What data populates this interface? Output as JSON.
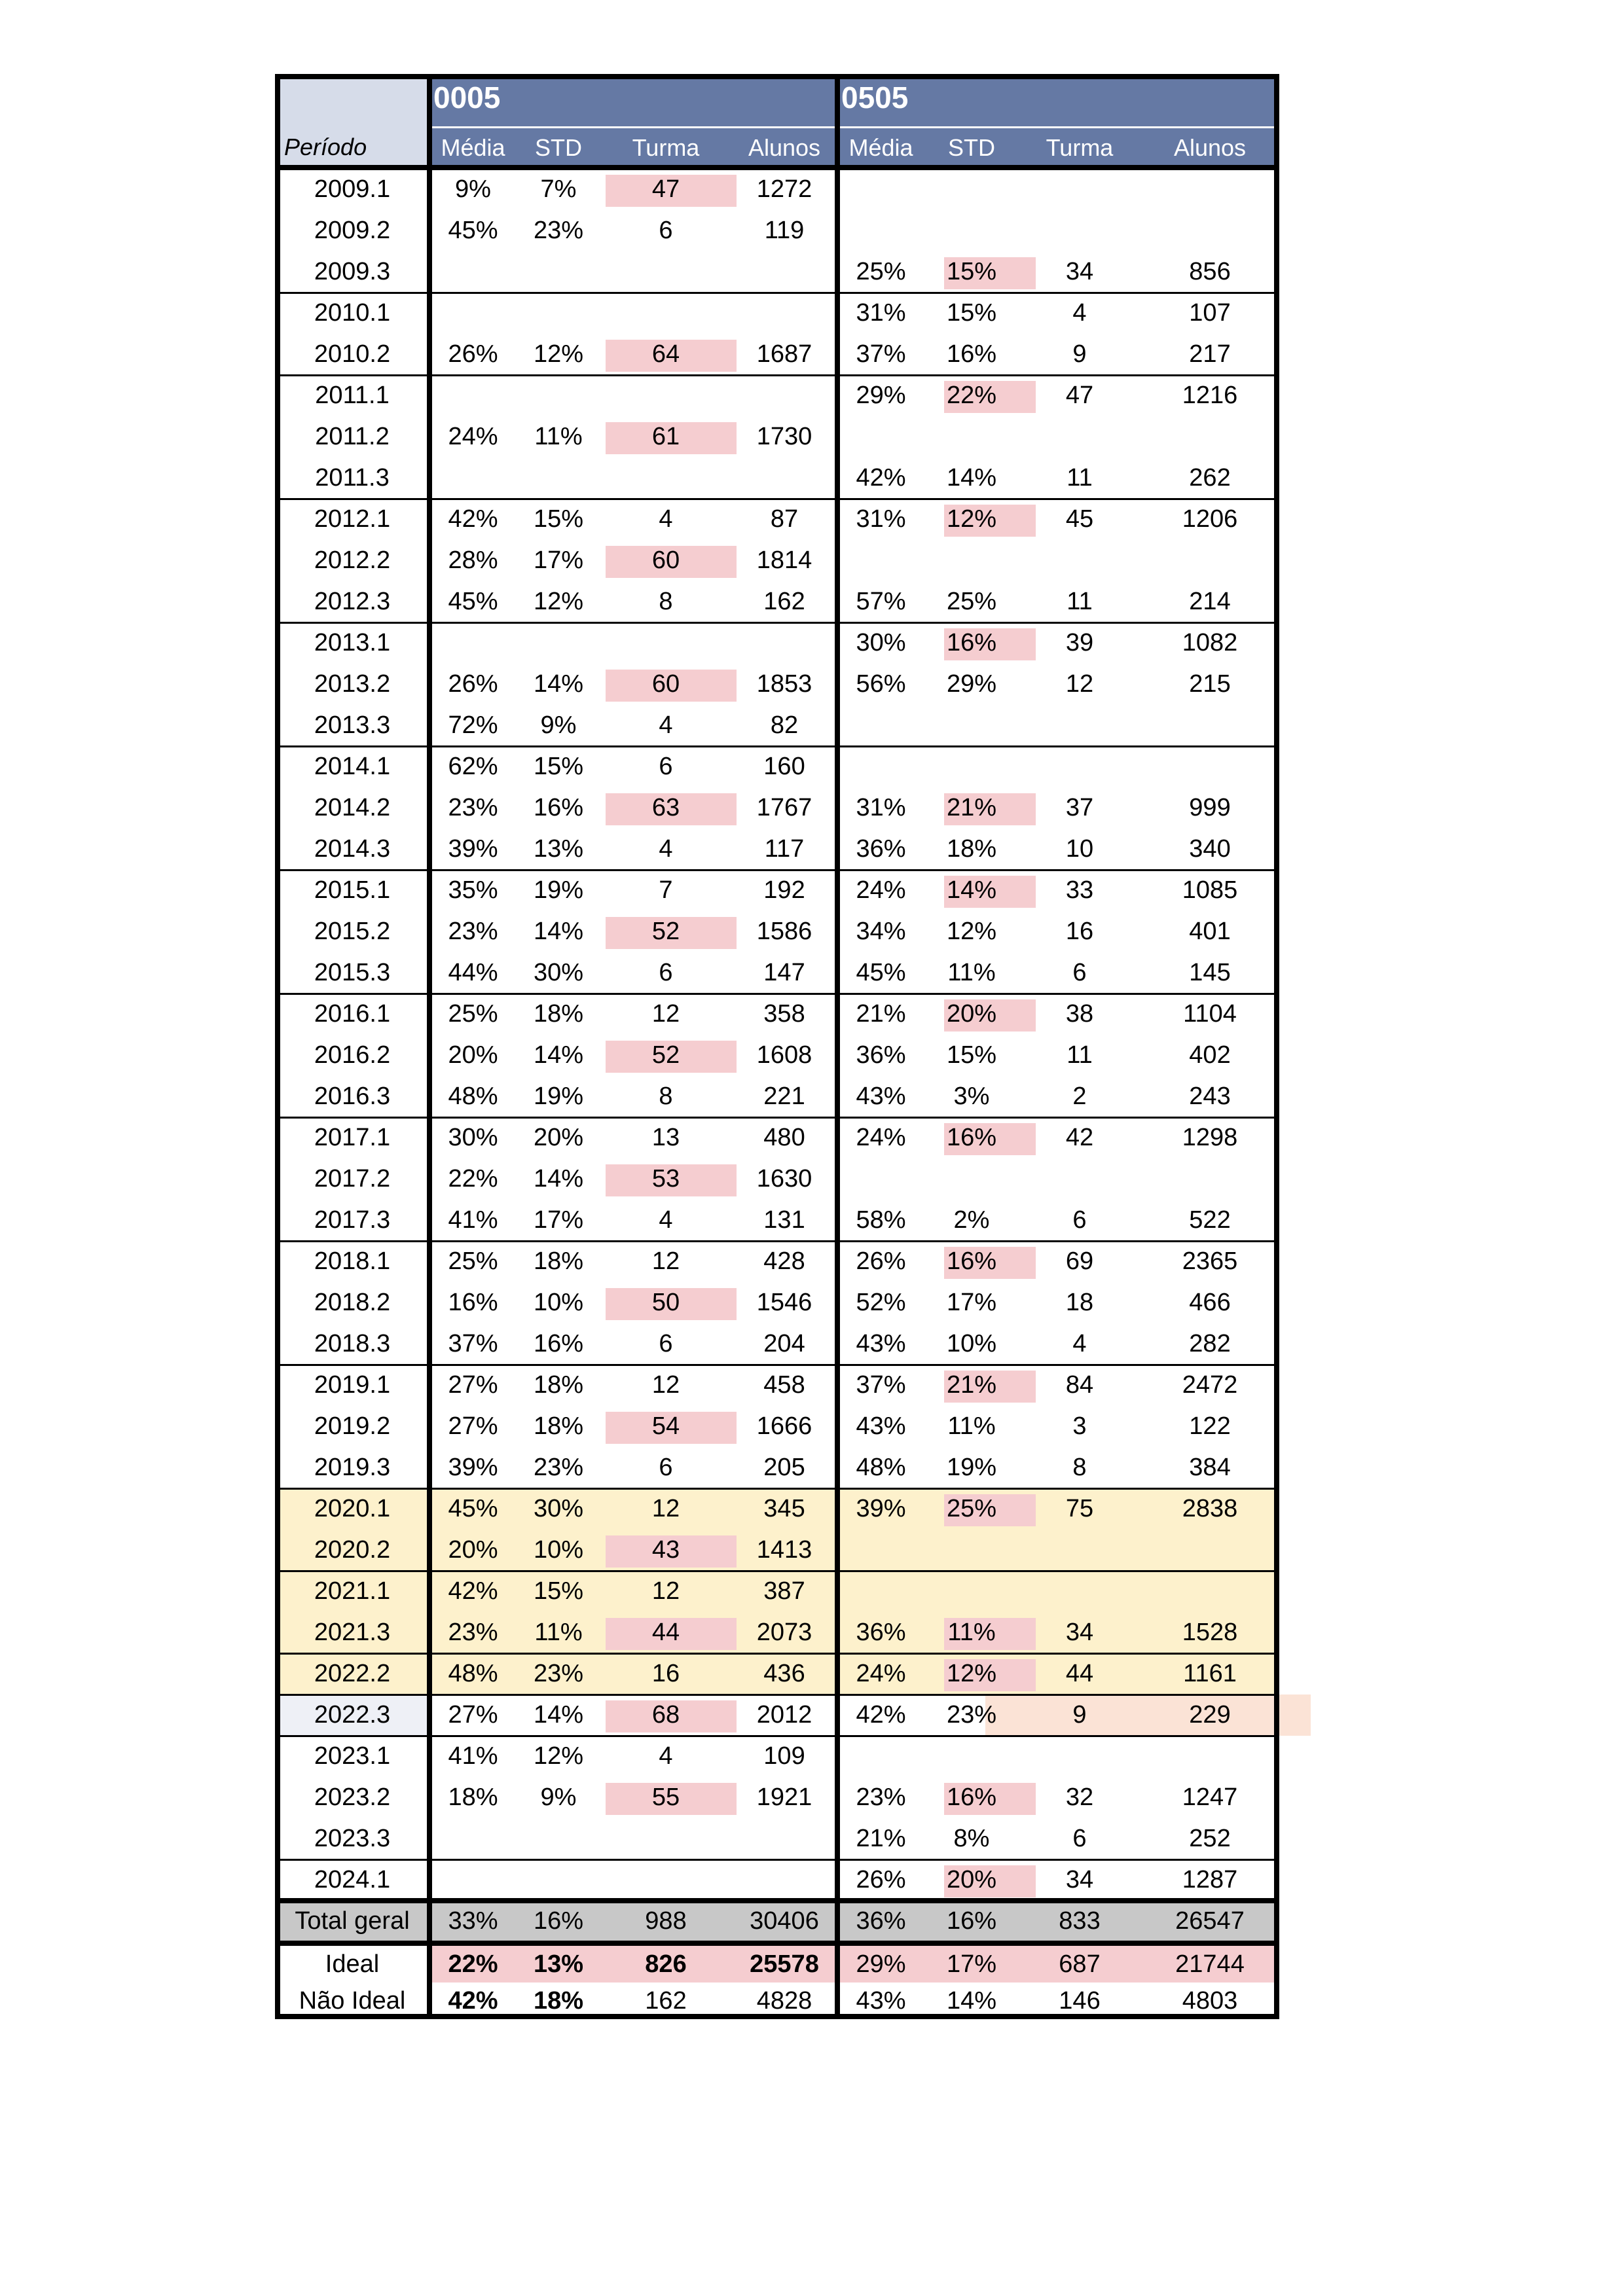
{
  "colors": {
    "header_blue": "#6579a4",
    "periodo_header_bg": "#d6dce9",
    "pandemic_bg": "#fdf1cc",
    "highlight_pink": "#f5cdd0",
    "total_gray": "#c8c8c8",
    "light_cell": "#eef0f6",
    "light_orange": "#fbe3d6"
  },
  "table": {
    "periodo_label": "Período",
    "groups": [
      {
        "code": "0005",
        "columns": [
          "Média",
          "STD",
          "Turma",
          "Alunos"
        ]
      },
      {
        "code": "0505",
        "columns": [
          "Média",
          "STD",
          "Turma",
          "Alunos"
        ]
      }
    ],
    "rows": [
      {
        "periodo": "2009.1",
        "g1": [
          "9%",
          "7%",
          "47",
          "1272"
        ],
        "g2": [
          "",
          "",
          "",
          ""
        ],
        "hl1": true,
        "hl2": false,
        "band": "n"
      },
      {
        "periodo": "2009.2",
        "g1": [
          "45%",
          "23%",
          "6",
          "119"
        ],
        "g2": [
          "",
          "",
          "",
          ""
        ],
        "hl1": false,
        "hl2": false,
        "band": "n"
      },
      {
        "periodo": "2009.3",
        "g1": [
          "",
          "",
          "",
          ""
        ],
        "g2": [
          "25%",
          "15%",
          "34",
          "856"
        ],
        "hl1": false,
        "hl2": true,
        "band": "n"
      },
      {
        "periodo": "2010.1",
        "g1": [
          "",
          "",
          "",
          ""
        ],
        "g2": [
          "31%",
          "15%",
          "4",
          "107"
        ],
        "hl1": false,
        "hl2": false,
        "band": "n"
      },
      {
        "periodo": "2010.2",
        "g1": [
          "26%",
          "12%",
          "64",
          "1687"
        ],
        "g2": [
          "37%",
          "16%",
          "9",
          "217"
        ],
        "hl1": true,
        "hl2": false,
        "band": "n"
      },
      {
        "periodo": "2011.1",
        "g1": [
          "",
          "",
          "",
          ""
        ],
        "g2": [
          "29%",
          "22%",
          "47",
          "1216"
        ],
        "hl1": false,
        "hl2": true,
        "band": "n"
      },
      {
        "periodo": "2011.2",
        "g1": [
          "24%",
          "11%",
          "61",
          "1730"
        ],
        "g2": [
          "",
          "",
          "",
          ""
        ],
        "hl1": true,
        "hl2": false,
        "band": "n"
      },
      {
        "periodo": "2011.3",
        "g1": [
          "",
          "",
          "",
          ""
        ],
        "g2": [
          "42%",
          "14%",
          "11",
          "262"
        ],
        "hl1": false,
        "hl2": false,
        "band": "n"
      },
      {
        "periodo": "2012.1",
        "g1": [
          "42%",
          "15%",
          "4",
          "87"
        ],
        "g2": [
          "31%",
          "12%",
          "45",
          "1206"
        ],
        "hl1": false,
        "hl2": true,
        "band": "n"
      },
      {
        "periodo": "2012.2",
        "g1": [
          "28%",
          "17%",
          "60",
          "1814"
        ],
        "g2": [
          "",
          "",
          "",
          ""
        ],
        "hl1": true,
        "hl2": false,
        "band": "n"
      },
      {
        "periodo": "2012.3",
        "g1": [
          "45%",
          "12%",
          "8",
          "162"
        ],
        "g2": [
          "57%",
          "25%",
          "11",
          "214"
        ],
        "hl1": false,
        "hl2": false,
        "band": "n"
      },
      {
        "periodo": "2013.1",
        "g1": [
          "",
          "",
          "",
          ""
        ],
        "g2": [
          "30%",
          "16%",
          "39",
          "1082"
        ],
        "hl1": false,
        "hl2": true,
        "band": "n"
      },
      {
        "periodo": "2013.2",
        "g1": [
          "26%",
          "14%",
          "60",
          "1853"
        ],
        "g2": [
          "56%",
          "29%",
          "12",
          "215"
        ],
        "hl1": true,
        "hl2": false,
        "band": "n"
      },
      {
        "periodo": "2013.3",
        "g1": [
          "72%",
          "9%",
          "4",
          "82"
        ],
        "g2": [
          "",
          "",
          "",
          ""
        ],
        "hl1": false,
        "hl2": false,
        "band": "n"
      },
      {
        "periodo": "2014.1",
        "g1": [
          "62%",
          "15%",
          "6",
          "160"
        ],
        "g2": [
          "",
          "",
          "",
          ""
        ],
        "hl1": false,
        "hl2": false,
        "band": "n"
      },
      {
        "periodo": "2014.2",
        "g1": [
          "23%",
          "16%",
          "63",
          "1767"
        ],
        "g2": [
          "31%",
          "21%",
          "37",
          "999"
        ],
        "hl1": true,
        "hl2": true,
        "band": "n"
      },
      {
        "periodo": "2014.3",
        "g1": [
          "39%",
          "13%",
          "4",
          "117"
        ],
        "g2": [
          "36%",
          "18%",
          "10",
          "340"
        ],
        "hl1": false,
        "hl2": false,
        "band": "n"
      },
      {
        "periodo": "2015.1",
        "g1": [
          "35%",
          "19%",
          "7",
          "192"
        ],
        "g2": [
          "24%",
          "14%",
          "33",
          "1085"
        ],
        "hl1": false,
        "hl2": true,
        "band": "n"
      },
      {
        "periodo": "2015.2",
        "g1": [
          "23%",
          "14%",
          "52",
          "1586"
        ],
        "g2": [
          "34%",
          "12%",
          "16",
          "401"
        ],
        "hl1": true,
        "hl2": false,
        "band": "n"
      },
      {
        "periodo": "2015.3",
        "g1": [
          "44%",
          "30%",
          "6",
          "147"
        ],
        "g2": [
          "45%",
          "11%",
          "6",
          "145"
        ],
        "hl1": false,
        "hl2": false,
        "band": "n"
      },
      {
        "periodo": "2016.1",
        "g1": [
          "25%",
          "18%",
          "12",
          "358"
        ],
        "g2": [
          "21%",
          "20%",
          "38",
          "1104"
        ],
        "hl1": false,
        "hl2": true,
        "band": "n"
      },
      {
        "periodo": "2016.2",
        "g1": [
          "20%",
          "14%",
          "52",
          "1608"
        ],
        "g2": [
          "36%",
          "15%",
          "11",
          "402"
        ],
        "hl1": true,
        "hl2": false,
        "band": "n"
      },
      {
        "periodo": "2016.3",
        "g1": [
          "48%",
          "19%",
          "8",
          "221"
        ],
        "g2": [
          "43%",
          "3%",
          "2",
          "243"
        ],
        "hl1": false,
        "hl2": false,
        "band": "n"
      },
      {
        "periodo": "2017.1",
        "g1": [
          "30%",
          "20%",
          "13",
          "480"
        ],
        "g2": [
          "24%",
          "16%",
          "42",
          "1298"
        ],
        "hl1": false,
        "hl2": true,
        "band": "n"
      },
      {
        "periodo": "2017.2",
        "g1": [
          "22%",
          "14%",
          "53",
          "1630"
        ],
        "g2": [
          "",
          "",
          "",
          ""
        ],
        "hl1": true,
        "hl2": false,
        "band": "n"
      },
      {
        "periodo": "2017.3",
        "g1": [
          "41%",
          "17%",
          "4",
          "131"
        ],
        "g2": [
          "58%",
          "2%",
          "6",
          "522"
        ],
        "hl1": false,
        "hl2": false,
        "band": "n"
      },
      {
        "periodo": "2018.1",
        "g1": [
          "25%",
          "18%",
          "12",
          "428"
        ],
        "g2": [
          "26%",
          "16%",
          "69",
          "2365"
        ],
        "hl1": false,
        "hl2": true,
        "band": "n"
      },
      {
        "periodo": "2018.2",
        "g1": [
          "16%",
          "10%",
          "50",
          "1546"
        ],
        "g2": [
          "52%",
          "17%",
          "18",
          "466"
        ],
        "hl1": true,
        "hl2": false,
        "band": "n"
      },
      {
        "periodo": "2018.3",
        "g1": [
          "37%",
          "16%",
          "6",
          "204"
        ],
        "g2": [
          "43%",
          "10%",
          "4",
          "282"
        ],
        "hl1": false,
        "hl2": false,
        "band": "n"
      },
      {
        "periodo": "2019.1",
        "g1": [
          "27%",
          "18%",
          "12",
          "458"
        ],
        "g2": [
          "37%",
          "21%",
          "84",
          "2472"
        ],
        "hl1": false,
        "hl2": true,
        "band": "n"
      },
      {
        "periodo": "2019.2",
        "g1": [
          "27%",
          "18%",
          "54",
          "1666"
        ],
        "g2": [
          "43%",
          "11%",
          "3",
          "122"
        ],
        "hl1": true,
        "hl2": false,
        "band": "n"
      },
      {
        "periodo": "2019.3",
        "g1": [
          "39%",
          "23%",
          "6",
          "205"
        ],
        "g2": [
          "48%",
          "19%",
          "8",
          "384"
        ],
        "hl1": false,
        "hl2": false,
        "band": "n"
      },
      {
        "periodo": "2020.1",
        "g1": [
          "45%",
          "30%",
          "12",
          "345"
        ],
        "g2": [
          "39%",
          "25%",
          "75",
          "2838"
        ],
        "hl1": false,
        "hl2": true,
        "band": "y"
      },
      {
        "periodo": "2020.2",
        "g1": [
          "20%",
          "10%",
          "43",
          "1413"
        ],
        "g2": [
          "",
          "",
          "",
          ""
        ],
        "hl1": true,
        "hl2": false,
        "band": "y"
      },
      {
        "periodo": "2021.1",
        "g1": [
          "42%",
          "15%",
          "12",
          "387"
        ],
        "g2": [
          "",
          "",
          "",
          ""
        ],
        "hl1": false,
        "hl2": false,
        "band": "y"
      },
      {
        "periodo": "2021.3",
        "g1": [
          "23%",
          "11%",
          "44",
          "2073"
        ],
        "g2": [
          "36%",
          "11%",
          "34",
          "1528"
        ],
        "hl1": true,
        "hl2": true,
        "band": "y"
      },
      {
        "periodo": "2022.2",
        "g1": [
          "48%",
          "23%",
          "16",
          "436"
        ],
        "g2": [
          "24%",
          "12%",
          "44",
          "1161"
        ],
        "hl1": false,
        "hl2": true,
        "band": "y"
      },
      {
        "periodo": "2022.3",
        "g1": [
          "27%",
          "14%",
          "68",
          "2012"
        ],
        "g2": [
          "42%",
          "23%",
          "9",
          "229"
        ],
        "hl1": true,
        "hl2": false,
        "band": "l"
      },
      {
        "periodo": "2023.1",
        "g1": [
          "41%",
          "12%",
          "4",
          "109"
        ],
        "g2": [
          "",
          "",
          "",
          ""
        ],
        "hl1": false,
        "hl2": false,
        "band": "n"
      },
      {
        "periodo": "2023.2",
        "g1": [
          "18%",
          "9%",
          "55",
          "1921"
        ],
        "g2": [
          "23%",
          "16%",
          "32",
          "1247"
        ],
        "hl1": true,
        "hl2": true,
        "band": "n"
      },
      {
        "periodo": "2023.3",
        "g1": [
          "",
          "",
          "",
          ""
        ],
        "g2": [
          "21%",
          "8%",
          "6",
          "252"
        ],
        "hl1": false,
        "hl2": false,
        "band": "n"
      },
      {
        "periodo": "2024.1",
        "g1": [
          "",
          "",
          "",
          ""
        ],
        "g2": [
          "26%",
          "20%",
          "34",
          "1287"
        ],
        "hl1": false,
        "hl2": true,
        "band": "n"
      }
    ],
    "total": {
      "label": "Total geral",
      "g1": [
        "33%",
        "16%",
        "988",
        "30406"
      ],
      "g2": [
        "36%",
        "16%",
        "833",
        "26547"
      ]
    },
    "ideal": {
      "label": "Ideal",
      "g1": [
        "22%",
        "13%",
        "826",
        "25578"
      ],
      "g2": [
        "29%",
        "17%",
        "687",
        "21744"
      ]
    },
    "nao_ideal": {
      "label": "Não Ideal",
      "g1": [
        "42%",
        "18%",
        "162",
        "4828"
      ],
      "g2": [
        "43%",
        "14%",
        "146",
        "4803"
      ]
    }
  }
}
